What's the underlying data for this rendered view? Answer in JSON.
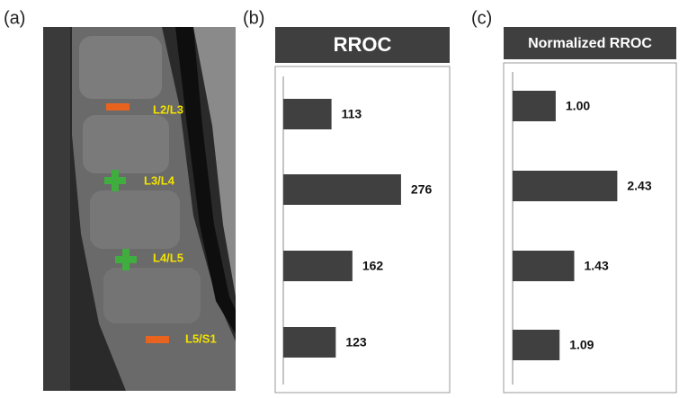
{
  "image_panel": {
    "label": "(a)",
    "levels": [
      "L2/L3",
      "L3/L4",
      "L4/L5",
      "L5/S1"
    ]
  },
  "chart_data": [
    {
      "type": "bar",
      "orientation": "horizontal",
      "panel_label": "(b)",
      "title": "RROC",
      "categories": [
        null,
        null,
        null,
        null
      ],
      "values": [
        113,
        276,
        162,
        123
      ],
      "color": "#404040",
      "xlim": [
        0,
        390
      ]
    },
    {
      "type": "bar",
      "orientation": "horizontal",
      "panel_label": "(c)",
      "title": "Normalized RROC",
      "categories": [
        null,
        null,
        null,
        null
      ],
      "values": [
        1.0,
        2.43,
        1.43,
        1.09
      ],
      "value_labels": [
        "1.00",
        "2.43",
        "1.43",
        "1.09"
      ],
      "color": "#404040",
      "xlim": [
        0,
        3.8
      ]
    }
  ]
}
